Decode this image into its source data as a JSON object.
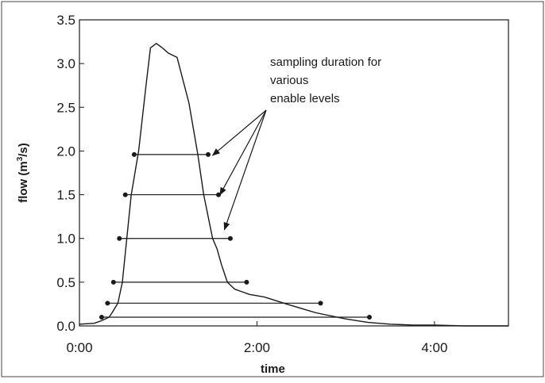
{
  "chart_data": {
    "type": "line",
    "title": "",
    "xlabel": "time",
    "ylabel_main": "flow (m",
    "ylabel_sup": "3",
    "ylabel_tail": "/s)",
    "xlim": [
      0,
      290
    ],
    "ylim": [
      0,
      3.5
    ],
    "x_ticks": [
      {
        "value": 0,
        "label": "0:00"
      },
      {
        "value": 120,
        "label": "2:00"
      },
      {
        "value": 240,
        "label": "4:00"
      }
    ],
    "y_ticks": [
      {
        "value": 0.0,
        "label": "0.0"
      },
      {
        "value": 0.5,
        "label": "0.5"
      },
      {
        "value": 1.0,
        "label": "1.0"
      },
      {
        "value": 1.5,
        "label": "1.5"
      },
      {
        "value": 2.0,
        "label": "2.0"
      },
      {
        "value": 2.5,
        "label": "2.5"
      },
      {
        "value": 3.0,
        "label": "3.0"
      },
      {
        "value": 3.5,
        "label": "3.5"
      }
    ],
    "grid": false,
    "series": [
      {
        "x": [
          0,
          10,
          15,
          20,
          22,
          26,
          29,
          32,
          35,
          40,
          45,
          48,
          52,
          56,
          60,
          66,
          74,
          80,
          84,
          90,
          93,
          96,
          100,
          105,
          110,
          115,
          125,
          140,
          160,
          180,
          195,
          210,
          225,
          240,
          260,
          290
        ],
        "y": [
          0.02,
          0.03,
          0.06,
          0.1,
          0.15,
          0.26,
          0.5,
          1.0,
          1.5,
          2.0,
          2.75,
          3.18,
          3.23,
          3.18,
          3.12,
          3.07,
          2.55,
          1.96,
          1.5,
          1.0,
          0.88,
          0.7,
          0.5,
          0.42,
          0.39,
          0.36,
          0.33,
          0.25,
          0.15,
          0.08,
          0.04,
          0.02,
          0.01,
          0.01,
          0.0,
          0.0
        ]
      }
    ],
    "enable_levels": [
      {
        "level": 0.1,
        "x_start": 15,
        "x_end": 196
      },
      {
        "level": 0.26,
        "x_start": 19,
        "x_end": 163
      },
      {
        "level": 0.5,
        "x_start": 23,
        "x_end": 113
      },
      {
        "level": 1.0,
        "x_start": 27,
        "x_end": 102
      },
      {
        "level": 1.5,
        "x_start": 31,
        "x_end": 94
      },
      {
        "level": 1.96,
        "x_start": 37,
        "x_end": 87
      }
    ],
    "annotation": {
      "lines": [
        "sampling duration for",
        "various",
        "enable levels"
      ],
      "arrow_targets": [
        {
          "x": 90,
          "y": 1.95
        },
        {
          "x": 95,
          "y": 1.5
        },
        {
          "x": 98,
          "y": 1.1
        }
      ]
    }
  },
  "colors": {
    "line": "#1a1a1a",
    "frame": "#1a1a1a",
    "background": "#ffffff"
  }
}
